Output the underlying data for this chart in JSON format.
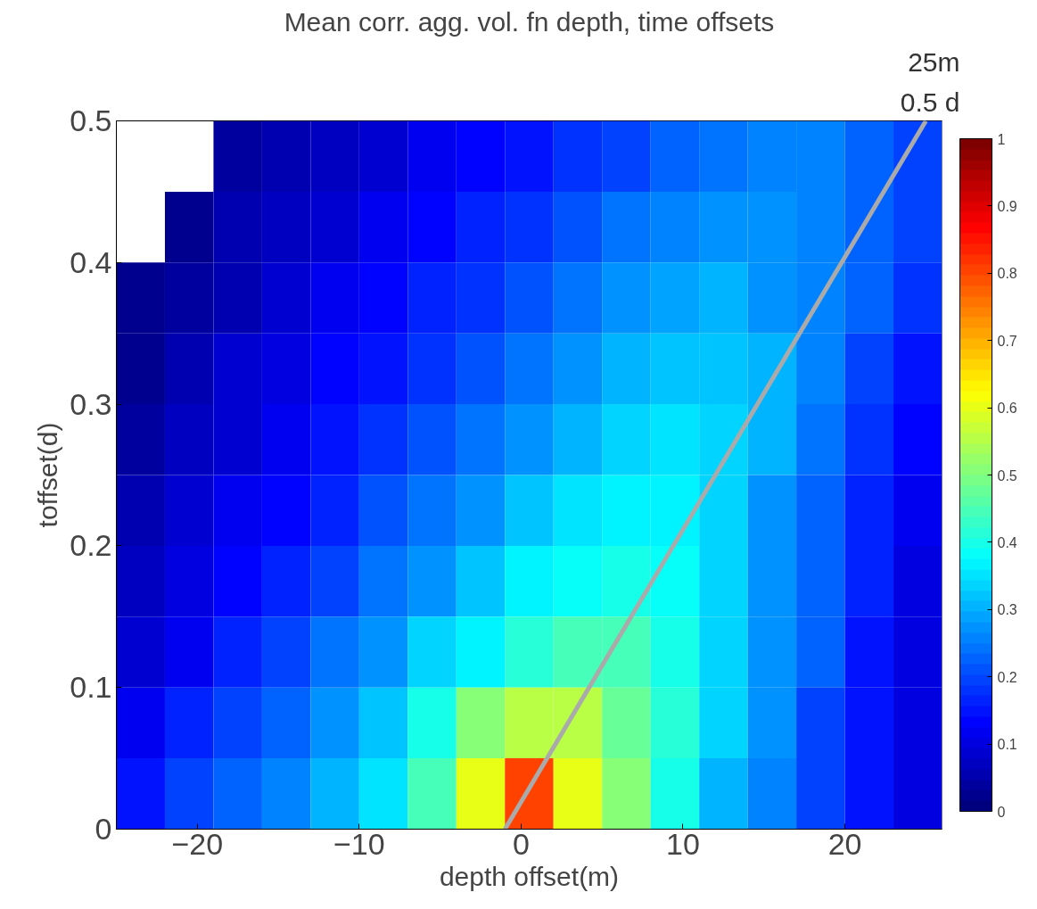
{
  "chart_data": {
    "type": "heatmap",
    "title": "Mean corr. agg. vol. fn depth, time offsets",
    "xlabel": "depth offset(m)",
    "ylabel": "toffset(d)",
    "xlim": [
      -25,
      26
    ],
    "ylim": [
      0,
      0.5
    ],
    "xticks": [
      {
        "value": -20,
        "label": "−20"
      },
      {
        "value": -10,
        "label": "−10"
      },
      0,
      10,
      20
    ],
    "yticks": [
      0,
      0.1,
      0.2,
      0.3,
      0.4,
      0.5
    ],
    "clim": [
      0,
      1
    ],
    "cticks": [
      0,
      0.1,
      0.2,
      0.3,
      0.4,
      0.5,
      0.6,
      0.7,
      0.8,
      0.9,
      1
    ],
    "cells": [
      [
        null,
        null,
        0.04,
        0.05,
        0.07,
        0.09,
        0.11,
        0.13,
        0.15,
        0.18,
        0.2,
        0.22,
        0.24,
        0.25,
        0.25,
        0.23,
        0.2
      ],
      [
        null,
        0.03,
        0.05,
        0.07,
        0.09,
        0.11,
        0.13,
        0.16,
        0.18,
        0.21,
        0.24,
        0.26,
        0.27,
        0.27,
        0.25,
        0.23,
        0.2
      ],
      [
        0.03,
        0.04,
        0.06,
        0.09,
        0.11,
        0.13,
        0.16,
        0.18,
        0.21,
        0.24,
        0.27,
        0.29,
        0.3,
        0.28,
        0.26,
        0.22,
        0.18
      ],
      [
        0.03,
        0.05,
        0.08,
        0.1,
        0.13,
        0.15,
        0.18,
        0.21,
        0.24,
        0.27,
        0.3,
        0.32,
        0.32,
        0.3,
        0.25,
        0.2,
        0.15
      ],
      [
        0.04,
        0.07,
        0.09,
        0.12,
        0.15,
        0.18,
        0.21,
        0.24,
        0.28,
        0.31,
        0.34,
        0.35,
        0.34,
        0.3,
        0.24,
        0.18,
        0.13
      ],
      [
        0.05,
        0.08,
        0.11,
        0.14,
        0.17,
        0.21,
        0.24,
        0.28,
        0.32,
        0.35,
        0.37,
        0.37,
        0.33,
        0.28,
        0.22,
        0.17,
        0.12
      ],
      [
        0.07,
        0.1,
        0.13,
        0.17,
        0.2,
        0.24,
        0.28,
        0.32,
        0.36,
        0.38,
        0.4,
        0.38,
        0.33,
        0.28,
        0.22,
        0.16,
        0.1
      ],
      [
        0.08,
        0.12,
        0.17,
        0.2,
        0.24,
        0.28,
        0.33,
        0.37,
        0.42,
        0.45,
        0.45,
        0.4,
        0.33,
        0.27,
        0.22,
        0.15,
        0.1
      ],
      [
        0.12,
        0.17,
        0.2,
        0.23,
        0.28,
        0.32,
        0.4,
        0.5,
        0.55,
        0.55,
        0.47,
        0.42,
        0.33,
        0.27,
        0.2,
        0.15,
        0.1
      ],
      [
        0.15,
        0.2,
        0.22,
        0.25,
        0.3,
        0.35,
        0.45,
        0.6,
        0.8,
        0.6,
        0.5,
        0.4,
        0.3,
        0.25,
        0.2,
        0.15,
        0.1
      ]
    ],
    "series": [
      {
        "type": "line",
        "x": [
          -1,
          25
        ],
        "values": [
          0,
          0.5
        ],
        "color": "#aaaaaa"
      }
    ],
    "annotations": [
      "25m",
      "0.5 d"
    ]
  }
}
